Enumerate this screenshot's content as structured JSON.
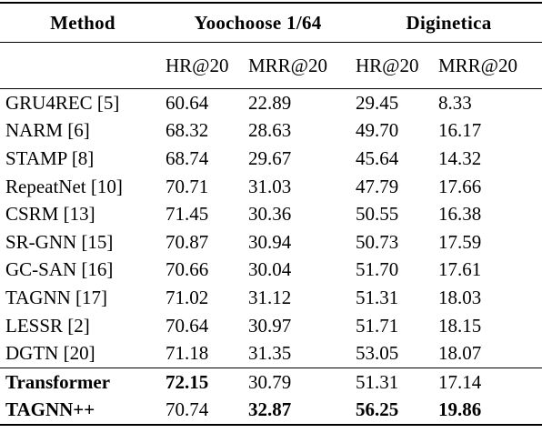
{
  "table": {
    "header": [
      "Method",
      "Yoochoose 1/64",
      "Diginetica"
    ],
    "subheader": [
      "HR@20",
      "MRR@20",
      "HR@20",
      "MRR@20"
    ],
    "rows": [
      [
        "GRU4REC [5]",
        "60.64",
        "22.89",
        "29.45",
        "8.33"
      ],
      [
        "NARM [6]",
        "68.32",
        "28.63",
        "49.70",
        "16.17"
      ],
      [
        "STAMP [8]",
        "68.74",
        "29.67",
        "45.64",
        "14.32"
      ],
      [
        "RepeatNet [10]",
        "70.71",
        "31.03",
        "47.79",
        "17.66"
      ],
      [
        "CSRM [13]",
        "71.45",
        "30.36",
        "50.55",
        "16.38"
      ],
      [
        "SR-GNN [15]",
        "70.87",
        "30.94",
        "50.73",
        "17.59"
      ],
      [
        "GC-SAN [16]",
        "70.66",
        "30.04",
        "51.70",
        "17.61"
      ],
      [
        "TAGNN [17]",
        "71.02",
        "31.12",
        "51.31",
        "18.03"
      ],
      [
        "LESSR [2]",
        "70.64",
        "30.97",
        "51.71",
        "18.15"
      ],
      [
        "DGTN [20]",
        "71.18",
        "31.35",
        "53.05",
        "18.07"
      ],
      [
        "Transformer",
        "72.15",
        "30.79",
        "51.31",
        "17.14"
      ],
      [
        "TAGNN++",
        "70.74",
        "32.87",
        "56.25",
        "19.86"
      ]
    ],
    "bold_cells": [
      [
        10,
        0
      ],
      [
        10,
        1
      ],
      [
        11,
        0
      ],
      [
        11,
        2
      ],
      [
        11,
        3
      ],
      [
        11,
        4
      ]
    ]
  }
}
